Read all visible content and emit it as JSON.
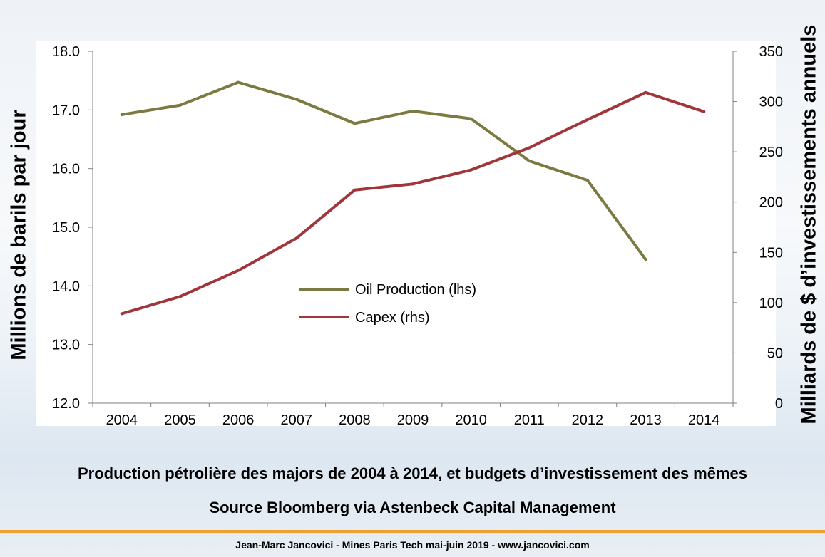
{
  "chart_data": {
    "type": "line",
    "categories": [
      "2004",
      "2005",
      "2006",
      "2007",
      "2008",
      "2009",
      "2010",
      "2011",
      "2012",
      "2013",
      "2014"
    ],
    "series": [
      {
        "name": "Oil Production (lhs)",
        "axis": "left",
        "color": "#7b7a40",
        "values": [
          16.92,
          17.08,
          17.47,
          17.18,
          16.77,
          16.98,
          16.85,
          16.13,
          15.8,
          14.45,
          null
        ]
      },
      {
        "name": "Capex (rhs)",
        "axis": "right",
        "color": "#a0363a",
        "values": [
          89,
          106,
          132,
          164,
          212,
          218,
          232,
          254,
          282,
          309,
          290
        ]
      }
    ],
    "ylabel": "Millions de barils par jour",
    "y2label": "Milliards de $ d’investissements annuels",
    "ylim": [
      12.0,
      18.0
    ],
    "y2lim": [
      0,
      350
    ],
    "yticks": [
      "12.0",
      "13.0",
      "14.0",
      "15.0",
      "16.0",
      "17.0",
      "18.0"
    ],
    "y2ticks": [
      "0",
      "50",
      "100",
      "150",
      "200",
      "250",
      "300",
      "350"
    ],
    "legend": "center",
    "grid": false
  },
  "captions": {
    "line1": "Production pétrolière des majors de 2004 à 2014, et budgets d’investissement des mêmes",
    "line2": "Source Bloomberg via Astenbeck Capital Management"
  },
  "footer": "Jean-Marc Jancovici - Mines Paris Tech mai-juin 2019 - www.jancovici.com"
}
